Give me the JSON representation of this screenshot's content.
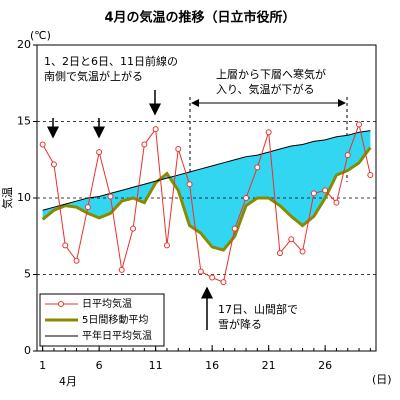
{
  "chart_data": {
    "type": "line",
    "title": "4月の気温の推移（日立市役所）",
    "y_unit": "(℃)",
    "x_unit": "(日)",
    "y_label": "気温",
    "month_label": "4月",
    "x": [
      1,
      2,
      3,
      4,
      5,
      6,
      7,
      8,
      9,
      10,
      11,
      12,
      13,
      14,
      15,
      16,
      17,
      18,
      19,
      20,
      21,
      22,
      23,
      24,
      25,
      26,
      27,
      28,
      29,
      30
    ],
    "xlim": [
      0.5,
      30.5
    ],
    "xticks": [
      1,
      6,
      11,
      16,
      21,
      26
    ],
    "ylim": [
      0,
      20
    ],
    "yticks": [
      0,
      5,
      10,
      15,
      20
    ],
    "grid": true,
    "fill_between": {
      "series": [
        1,
        2
      ],
      "color": "#33d6f0"
    },
    "series": [
      {
        "name": "日平均気温",
        "color": "#e8322a",
        "marker": "circle",
        "values": [
          13.5,
          12.2,
          6.9,
          5.9,
          9.4,
          13.0,
          10.1,
          5.3,
          8.0,
          13.5,
          14.5,
          6.9,
          13.2,
          10.9,
          5.2,
          4.8,
          4.5,
          8.0,
          10.0,
          12.0,
          14.3,
          6.4,
          7.3,
          6.5,
          10.3,
          10.5,
          9.7,
          12.8,
          14.8,
          11.5
        ]
      },
      {
        "name": "5日間移動平均",
        "color": "#8a8a00",
        "width": 3,
        "values": [
          8.6,
          9.2,
          9.5,
          9.4,
          9.0,
          8.7,
          9.0,
          9.8,
          10.0,
          9.7,
          11.0,
          11.6,
          10.5,
          8.2,
          7.7,
          6.8,
          6.6,
          7.5,
          9.5,
          10.0,
          10.0,
          9.5,
          8.8,
          8.2,
          8.8,
          10.0,
          11.5,
          11.8,
          12.3,
          13.3
        ]
      },
      {
        "name": "平年日平均気温",
        "color": "#000000",
        "width": 1,
        "values": [
          9.2,
          9.4,
          9.6,
          9.8,
          10.0,
          10.1,
          10.3,
          10.5,
          10.7,
          10.9,
          11.1,
          11.3,
          11.5,
          11.7,
          11.9,
          12.1,
          12.3,
          12.5,
          12.7,
          12.8,
          13.0,
          13.2,
          13.4,
          13.5,
          13.7,
          13.8,
          14.0,
          14.1,
          14.3,
          14.4
        ]
      }
    ],
    "legend": "lower left",
    "annotations": [
      {
        "lines": [
          "1、2日と6日、11日前線の",
          "南側で気温が上がる"
        ]
      },
      {
        "lines": [
          "上層から下層へ寒気が",
          "入り、気温が下がる"
        ]
      },
      {
        "lines": [
          "17日、山間部で",
          "雪が降る"
        ]
      }
    ]
  }
}
